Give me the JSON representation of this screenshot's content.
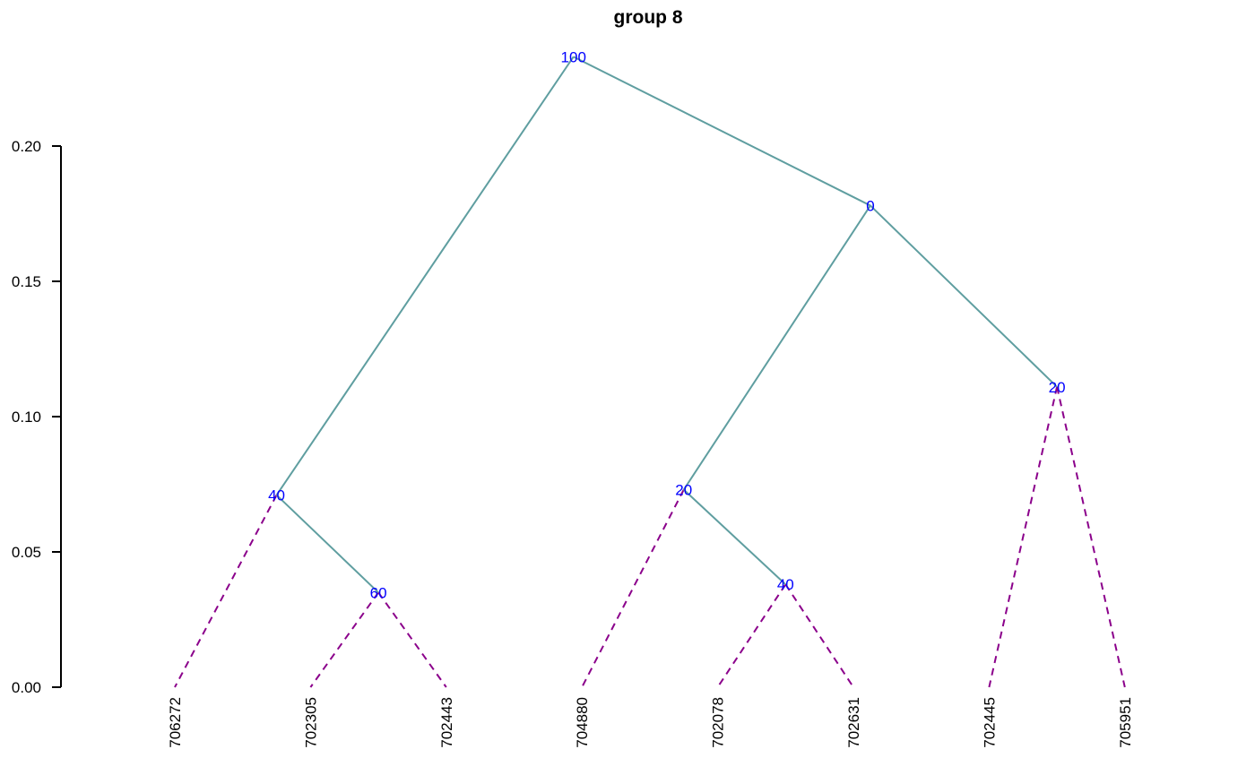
{
  "chart_data": {
    "type": "dendrogram",
    "title": "group 8",
    "ylim": [
      0,
      0.2
    ],
    "yticks": [
      "0.00",
      "0.05",
      "0.10",
      "0.15",
      "0.20"
    ],
    "leaves": [
      "706272",
      "702305",
      "702443",
      "704880",
      "702078",
      "702631",
      "702445",
      "705951"
    ],
    "nodes": [
      {
        "id": "n60a",
        "label": "60",
        "height": 0.035,
        "children": [
          "leaf:1",
          "leaf:2"
        ]
      },
      {
        "id": "n40a",
        "label": "40",
        "height": 0.071,
        "children": [
          "leaf:0",
          "n60a"
        ]
      },
      {
        "id": "n40b",
        "label": "40",
        "height": 0.038,
        "children": [
          "leaf:4",
          "leaf:5"
        ]
      },
      {
        "id": "n20a",
        "label": "20",
        "height": 0.073,
        "children": [
          "leaf:3",
          "n40b"
        ]
      },
      {
        "id": "n20b",
        "label": "20",
        "height": 0.111,
        "children": [
          "leaf:6",
          "leaf:7"
        ]
      },
      {
        "id": "n0",
        "label": "0",
        "height": 0.178,
        "children": [
          "n20a",
          "n20b"
        ]
      },
      {
        "id": "n100",
        "label": "100",
        "height": 0.233,
        "children": [
          "n40a",
          "n0"
        ]
      }
    ],
    "colors": {
      "internal_edge": "#5f9ea0",
      "leaf_edge": "#8b008b",
      "node_label": "#0000ff",
      "axis": "#000000"
    }
  }
}
